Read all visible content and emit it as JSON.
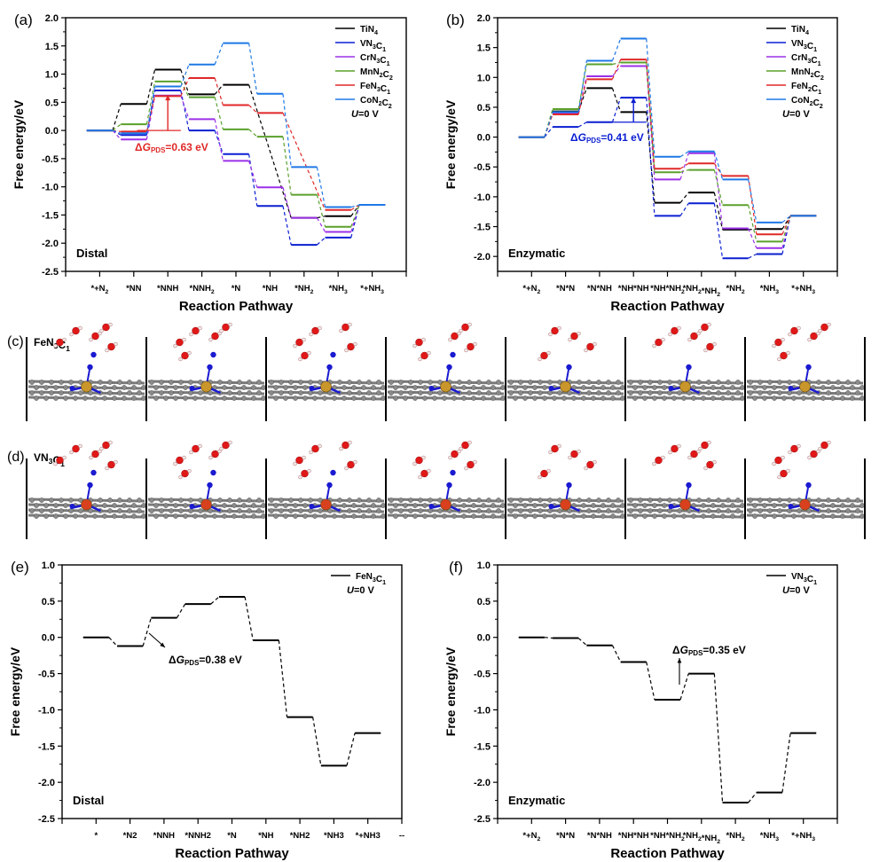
{
  "chart_data": [
    {
      "panel": "(a)",
      "type": "line",
      "subtype": "free-energy-step-diagram",
      "title": "",
      "xlabel": "Reaction Pathway",
      "ylabel": "Free energy/eV",
      "ylim": [
        -2.5,
        2.0
      ],
      "yticks": [
        "2.0",
        "1.5",
        "1.0",
        "0.5",
        "0.0",
        "-0.5",
        "-1.0",
        "-1.5",
        "-2.0",
        "-2.5"
      ],
      "ytick_values": [
        2.0,
        1.5,
        1.0,
        0.5,
        0.0,
        -0.5,
        -1.0,
        -1.5,
        -2.0,
        -2.5
      ],
      "categories": [
        "*+N₂",
        "*NN",
        "*NNH",
        "*NNH₂",
        "*N",
        "*NH",
        "*NH₂",
        "*NH₃",
        "*+NH₃"
      ],
      "mechanism_label": "Distal",
      "potential_label": "U=0 V",
      "legend_position": "top-right",
      "series": [
        {
          "name": "TiN₄",
          "color": "#000000",
          "values": [
            0,
            0.47,
            1.08,
            0.64,
            0.81,
            null,
            -1.55,
            -1.52,
            -1.32
          ]
        },
        {
          "name": "VN₃C₁",
          "color": "#0a1ed2",
          "values": [
            0,
            -0.08,
            0.71,
            0.0,
            -0.42,
            -1.34,
            -2.03,
            -1.9,
            -1.32
          ]
        },
        {
          "name": "CrN₃C₁",
          "color": "#9b30e8",
          "values": [
            0,
            -0.16,
            0.62,
            0.2,
            -0.54,
            -1.01,
            -1.55,
            -1.8,
            -1.32
          ]
        },
        {
          "name": "MnN₂C₂",
          "color": "#5aa02c",
          "values": [
            0,
            0.11,
            0.87,
            0.59,
            0.02,
            -0.11,
            -1.14,
            -1.71,
            -1.32
          ]
        },
        {
          "name": "FeN₃C₁",
          "color": "#e02828",
          "values": [
            0,
            -0.02,
            0.61,
            0.93,
            0.45,
            0.31,
            null,
            -1.41,
            -1.32
          ]
        },
        {
          "name": "CoN₂C₂",
          "color": "#1e78e6",
          "values": [
            0,
            -0.05,
            0.78,
            1.17,
            1.55,
            0.65,
            -0.65,
            -1.36,
            -1.32
          ]
        }
      ],
      "annotation": {
        "text": "ΔG",
        "sub": "PDS",
        "value": "=0.63 eV",
        "color": "#e02828",
        "from": 0.0,
        "to": 0.63,
        "at_step": "*NNH"
      }
    },
    {
      "panel": "(b)",
      "type": "line",
      "subtype": "free-energy-step-diagram",
      "title": "",
      "xlabel": "Reaction Pathway",
      "ylabel": "Free energy/eV",
      "ylim": [
        -2.25,
        2.0
      ],
      "yticks": [
        "2.0",
        "1.5",
        "1.0",
        "0.5",
        "0.0",
        "-0.5",
        "-1.0",
        "-1.5",
        "-2.0"
      ],
      "ytick_values": [
        2.0,
        1.5,
        1.0,
        0.5,
        0.0,
        -0.5,
        -1.0,
        -1.5,
        -2.0
      ],
      "categories": [
        "*+N₂",
        "*N*N",
        "*N*NH",
        "*NH*NH",
        "*NH*NH₂",
        "*NH₂*NH₂",
        "*NH₂",
        "*NH₃",
        "*+NH₃"
      ],
      "mechanism_label": "Enzymatic",
      "potential_label": "U=0 V",
      "legend_position": "top-right",
      "series": [
        {
          "name": "TiN₄",
          "color": "#000000",
          "values": [
            0,
            0.43,
            0.82,
            0.42,
            -1.1,
            -0.93,
            -1.55,
            -1.54,
            -1.32
          ]
        },
        {
          "name": "VN₃C₁",
          "color": "#0a1ed2",
          "values": [
            0,
            0.17,
            0.25,
            0.66,
            -1.32,
            -1.11,
            -2.03,
            -1.96,
            -1.32
          ]
        },
        {
          "name": "CrN₃C₁",
          "color": "#9b30e8",
          "values": [
            0,
            0.4,
            1.02,
            1.19,
            -0.71,
            -0.27,
            -1.53,
            -1.86,
            -1.32
          ]
        },
        {
          "name": "MnN₂C₂",
          "color": "#5aa02c",
          "values": [
            0,
            0.47,
            1.22,
            1.25,
            -0.59,
            -0.55,
            -1.14,
            -1.75,
            -1.32
          ]
        },
        {
          "name": "FeN₂C₁",
          "color": "#e02828",
          "values": [
            0,
            0.38,
            0.97,
            1.3,
            -0.53,
            -0.44,
            -0.65,
            -1.63,
            -1.32
          ]
        },
        {
          "name": "CoN₂C₂",
          "color": "#1e78e6",
          "values": [
            0,
            0.42,
            1.28,
            1.65,
            -0.33,
            -0.24,
            -0.71,
            -1.43,
            -1.32
          ]
        }
      ],
      "annotation": {
        "text": "ΔG",
        "sub": "PDS",
        "value": "=0.41 eV",
        "color": "#0a1ed2",
        "from": 0.25,
        "to": 0.66,
        "at_step": "*NH*NH"
      }
    },
    {
      "panel": "(e)",
      "type": "line",
      "subtype": "free-energy-step-diagram",
      "title": "",
      "xlabel": "Reaction Pathway",
      "ylabel": "Free energy/eV",
      "ylim": [
        -2.5,
        1.0
      ],
      "yticks": [
        "1.0",
        "0.5",
        "0.0",
        "-0.5",
        "-1.0",
        "-1.5",
        "-2.0",
        "-2.5"
      ],
      "ytick_values": [
        1.0,
        0.5,
        0.0,
        -0.5,
        -1.0,
        -1.5,
        -2.0,
        -2.5
      ],
      "categories": [
        "*",
        "*N2",
        "*NNH",
        "*NNH2",
        "*N",
        "*NH",
        "*NH2",
        "*NH3",
        "*+NH3",
        "--"
      ],
      "mechanism_label": "Distal",
      "potential_label": "U=0 V",
      "legend_position": "top-right",
      "series": [
        {
          "name": "FeN₃C₁",
          "color": "#000000",
          "values": [
            0,
            -0.12,
            0.27,
            0.46,
            0.56,
            -0.04,
            -1.1,
            -1.77,
            -1.32
          ]
        }
      ],
      "annotation": {
        "text": "ΔG",
        "sub": "PDS",
        "value": "=0.38 eV",
        "color": "#000000"
      }
    },
    {
      "panel": "(f)",
      "type": "line",
      "subtype": "free-energy-step-diagram",
      "title": "",
      "xlabel": "Reaction Pathway",
      "ylabel": "Free energy/eV",
      "ylim": [
        -2.5,
        1.0
      ],
      "yticks": [
        "1.0",
        "0.5",
        "0.0",
        "-0.5",
        "-1.0",
        "-1.5",
        "-2.0",
        "-2.5"
      ],
      "ytick_values": [
        1.0,
        0.5,
        0.0,
        -0.5,
        -1.0,
        -1.5,
        -2.0,
        -2.5
      ],
      "categories": [
        "*+N₂",
        "*N*N",
        "*N*NH",
        "*NH*NH",
        "*NH*NH₂",
        "*NH₂*NH₂",
        "*NH₂",
        "*NH₃",
        "*+NH₃"
      ],
      "mechanism_label": "Enzymatic",
      "potential_label": "U=0 V",
      "legend_position": "top-right",
      "series": [
        {
          "name": "VN₃C₁",
          "color": "#000000",
          "values": [
            0,
            -0.01,
            -0.11,
            -0.34,
            -0.86,
            -0.5,
            -2.28,
            -2.14,
            -1.32
          ]
        }
      ],
      "annotation": {
        "text": "ΔG",
        "sub": "PDS",
        "value": "=0.35 eV",
        "color": "#000000"
      }
    }
  ],
  "structures": {
    "c": {
      "panel": "(c)",
      "label": "FeN₃C₁",
      "metal_color": "#c8962a",
      "frames": 7
    },
    "d": {
      "panel": "(d)",
      "label": "VN₃C₁",
      "metal_color": "#d8401e",
      "frames": 7
    }
  }
}
